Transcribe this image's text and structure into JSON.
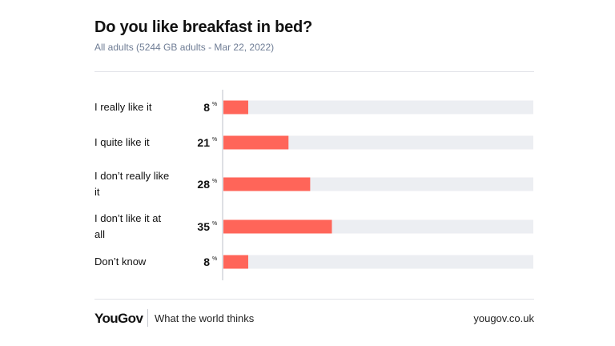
{
  "header": {
    "title": "Do you like breakfast in bed?",
    "subtitle": "All adults (5244 GB adults - Mar 22, 2022)"
  },
  "footer": {
    "logo": "YouGov",
    "tagline": "What the world thinks",
    "url": "yougov.co.uk"
  },
  "colors": {
    "bar": "#ff6559",
    "track": "#eceef2",
    "axis": "#d4d6db"
  },
  "chart_data": {
    "type": "bar",
    "orientation": "horizontal",
    "categories": [
      "I really like it",
      "I quite like it",
      "I don’t really like it",
      "I don’t like it at all",
      "Don’t know"
    ],
    "values": [
      8,
      21,
      28,
      35,
      8
    ],
    "unit": "%",
    "xlim": [
      0,
      100
    ],
    "title": "Do you like breakfast in bed?",
    "subtitle": "All adults (5244 GB adults - Mar 22, 2022)",
    "grid": false,
    "legend": "none"
  }
}
